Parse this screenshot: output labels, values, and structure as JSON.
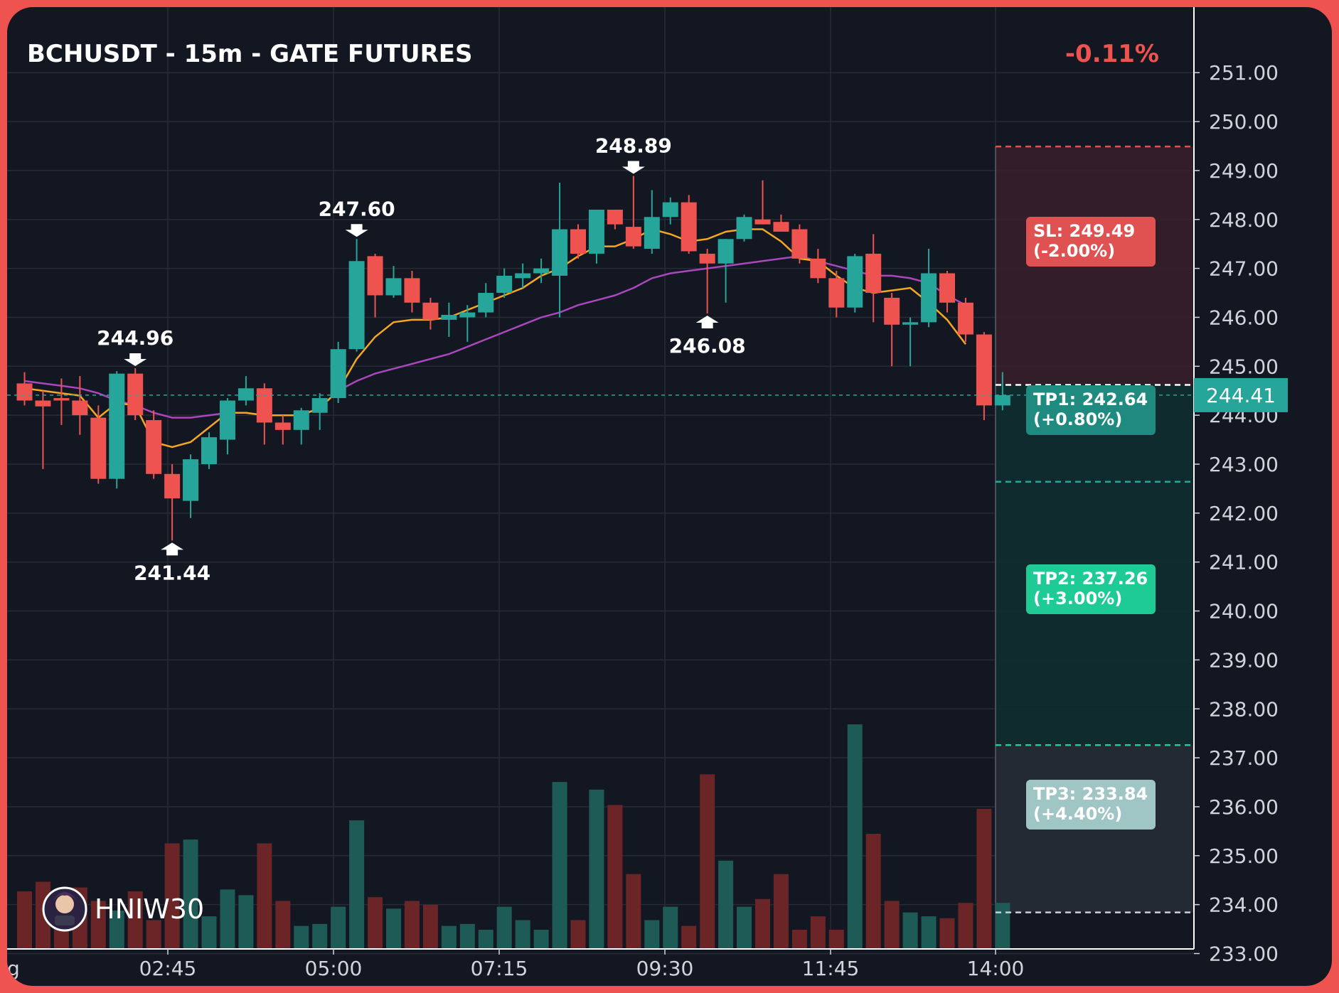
{
  "header": {
    "title": "BCHUSDT - 15m - GATE FUTURES",
    "change": "-0.11%"
  },
  "colors": {
    "up": "#26a69a",
    "down": "#ef5350",
    "ma_fast": "#f5a623",
    "ma_slow": "#ab47bc",
    "sl": "#e05252",
    "tp1": "#1f8a80",
    "tp2": "#1ecb95",
    "tp3": "#9fc6c4"
  },
  "brand": {
    "name": "HNIW30",
    "icon": "avatar-icon"
  },
  "chart_data": {
    "type": "candlestick",
    "ylim": [
      232.6,
      251.6
    ],
    "yticks": [
      "233.00",
      "234.00",
      "235.00",
      "236.00",
      "237.00",
      "238.00",
      "239.00",
      "240.00",
      "241.00",
      "242.00",
      "243.00",
      "244.00",
      "245.00",
      "246.00",
      "247.00",
      "248.00",
      "249.00",
      "250.00",
      "251.00"
    ],
    "xticks": [
      "g",
      "02:45",
      "05:00",
      "07:15",
      "09:30",
      "11:45",
      "14:00"
    ],
    "last_price": "244.41",
    "candles": [
      {
        "o": 244.65,
        "h": 244.88,
        "l": 244.2,
        "c": 244.3,
        "v": 0.3
      },
      {
        "o": 244.3,
        "h": 244.5,
        "l": 242.9,
        "c": 244.18,
        "v": 0.35
      },
      {
        "o": 244.35,
        "h": 244.75,
        "l": 243.8,
        "c": 244.3,
        "v": 0.3
      },
      {
        "o": 244.3,
        "h": 244.8,
        "l": 243.6,
        "c": 244.0,
        "v": 0.32
      },
      {
        "o": 243.95,
        "h": 244.2,
        "l": 242.6,
        "c": 242.7,
        "v": 0.25
      },
      {
        "o": 242.7,
        "h": 244.9,
        "l": 242.5,
        "c": 244.85,
        "v": 0.2
      },
      {
        "o": 244.85,
        "h": 244.96,
        "l": 243.9,
        "c": 244.0,
        "v": 0.3
      },
      {
        "o": 243.9,
        "h": 244.1,
        "l": 242.7,
        "c": 242.8,
        "v": 0.15
      },
      {
        "o": 242.8,
        "h": 243.0,
        "l": 241.44,
        "c": 242.3,
        "v": 0.55
      },
      {
        "o": 242.25,
        "h": 243.2,
        "l": 241.9,
        "c": 243.1,
        "v": 0.57
      },
      {
        "o": 243.0,
        "h": 243.65,
        "l": 242.9,
        "c": 243.55,
        "v": 0.17
      },
      {
        "o": 243.5,
        "h": 244.35,
        "l": 243.2,
        "c": 244.3,
        "v": 0.31
      },
      {
        "o": 244.3,
        "h": 244.8,
        "l": 244.2,
        "c": 244.55,
        "v": 0.28
      },
      {
        "o": 244.55,
        "h": 244.65,
        "l": 243.4,
        "c": 243.85,
        "v": 0.55
      },
      {
        "o": 243.85,
        "h": 244.0,
        "l": 243.4,
        "c": 243.7,
        "v": 0.25
      },
      {
        "o": 243.7,
        "h": 244.15,
        "l": 243.4,
        "c": 244.1,
        "v": 0.12
      },
      {
        "o": 244.05,
        "h": 244.45,
        "l": 243.7,
        "c": 244.35,
        "v": 0.13
      },
      {
        "o": 244.35,
        "h": 245.5,
        "l": 244.25,
        "c": 245.35,
        "v": 0.22
      },
      {
        "o": 245.35,
        "h": 247.6,
        "l": 245.3,
        "c": 247.15,
        "v": 0.67
      },
      {
        "o": 247.25,
        "h": 247.3,
        "l": 246.0,
        "c": 246.45,
        "v": 0.27
      },
      {
        "o": 246.45,
        "h": 247.05,
        "l": 246.4,
        "c": 246.8,
        "v": 0.21
      },
      {
        "o": 246.8,
        "h": 246.95,
        "l": 246.1,
        "c": 246.3,
        "v": 0.25
      },
      {
        "o": 246.3,
        "h": 246.4,
        "l": 245.75,
        "c": 245.95,
        "v": 0.23
      },
      {
        "o": 245.95,
        "h": 246.3,
        "l": 245.6,
        "c": 246.05,
        "v": 0.12
      },
      {
        "o": 246.0,
        "h": 246.25,
        "l": 245.5,
        "c": 246.1,
        "v": 0.13
      },
      {
        "o": 246.1,
        "h": 246.7,
        "l": 246.0,
        "c": 246.5,
        "v": 0.1
      },
      {
        "o": 246.5,
        "h": 247.0,
        "l": 246.4,
        "c": 246.85,
        "v": 0.22
      },
      {
        "o": 246.8,
        "h": 247.1,
        "l": 246.6,
        "c": 246.9,
        "v": 0.15
      },
      {
        "o": 246.9,
        "h": 247.2,
        "l": 246.7,
        "c": 247.0,
        "v": 0.1
      },
      {
        "o": 246.85,
        "h": 248.75,
        "l": 246.0,
        "c": 247.8,
        "v": 0.87
      },
      {
        "o": 247.8,
        "h": 247.9,
        "l": 247.2,
        "c": 247.3,
        "v": 0.15
      },
      {
        "o": 247.3,
        "h": 248.2,
        "l": 247.1,
        "c": 248.2,
        "v": 0.83
      },
      {
        "o": 248.2,
        "h": 248.2,
        "l": 247.8,
        "c": 247.9,
        "v": 0.75
      },
      {
        "o": 247.85,
        "h": 248.89,
        "l": 247.4,
        "c": 247.45,
        "v": 0.39
      },
      {
        "o": 247.4,
        "h": 248.6,
        "l": 247.3,
        "c": 248.05,
        "v": 0.15
      },
      {
        "o": 248.05,
        "h": 248.45,
        "l": 247.9,
        "c": 248.35,
        "v": 0.22
      },
      {
        "o": 248.35,
        "h": 248.5,
        "l": 247.3,
        "c": 247.35,
        "v": 0.12
      },
      {
        "o": 247.3,
        "h": 247.4,
        "l": 246.08,
        "c": 247.1,
        "v": 0.91
      },
      {
        "o": 247.1,
        "h": 247.6,
        "l": 246.3,
        "c": 247.6,
        "v": 0.46
      },
      {
        "o": 247.6,
        "h": 248.1,
        "l": 247.55,
        "c": 248.05,
        "v": 0.22
      },
      {
        "o": 248.0,
        "h": 248.8,
        "l": 247.9,
        "c": 247.9,
        "v": 0.26
      },
      {
        "o": 247.95,
        "h": 248.1,
        "l": 247.8,
        "c": 247.75,
        "v": 0.39
      },
      {
        "o": 247.8,
        "h": 247.9,
        "l": 247.1,
        "c": 247.2,
        "v": 0.1
      },
      {
        "o": 247.2,
        "h": 247.4,
        "l": 246.7,
        "c": 246.8,
        "v": 0.17
      },
      {
        "o": 246.8,
        "h": 246.95,
        "l": 246.0,
        "c": 246.2,
        "v": 0.1
      },
      {
        "o": 246.2,
        "h": 247.3,
        "l": 246.1,
        "c": 247.25,
        "v": 1.17
      },
      {
        "o": 247.3,
        "h": 247.7,
        "l": 245.9,
        "c": 246.5,
        "v": 0.6
      },
      {
        "o": 246.4,
        "h": 246.5,
        "l": 245.0,
        "c": 245.85,
        "v": 0.25
      },
      {
        "o": 245.85,
        "h": 246.0,
        "l": 245.0,
        "c": 245.9,
        "v": 0.19
      },
      {
        "o": 245.9,
        "h": 247.4,
        "l": 245.8,
        "c": 246.9,
        "v": 0.17
      },
      {
        "o": 246.9,
        "h": 246.95,
        "l": 246.1,
        "c": 246.3,
        "v": 0.16
      },
      {
        "o": 246.3,
        "h": 246.4,
        "l": 245.5,
        "c": 245.65,
        "v": 0.24
      },
      {
        "o": 245.65,
        "h": 245.7,
        "l": 243.9,
        "c": 244.2,
        "v": 0.73
      },
      {
        "o": 244.2,
        "h": 244.88,
        "l": 244.1,
        "c": 244.41,
        "v": 0.24
      }
    ],
    "ma_fast": [
      244.55,
      244.5,
      244.45,
      244.4,
      243.95,
      244.25,
      244.2,
      243.45,
      243.35,
      243.45,
      243.75,
      244.05,
      244.05,
      244.0,
      244.0,
      244.0,
      244.15,
      244.5,
      245.15,
      245.6,
      245.9,
      245.95,
      245.95,
      246.0,
      246.15,
      246.3,
      246.45,
      246.6,
      246.85,
      247.0,
      247.25,
      247.45,
      247.45,
      247.6,
      247.8,
      247.7,
      247.55,
      247.6,
      247.75,
      247.8,
      247.8,
      247.55,
      247.2,
      247.15,
      246.85,
      246.6,
      246.5,
      246.55,
      246.6,
      246.3,
      245.95,
      245.45
    ],
    "ma_slow": [
      244.7,
      244.65,
      244.6,
      244.55,
      244.45,
      244.3,
      244.2,
      244.05,
      243.95,
      243.95,
      244.0,
      244.05,
      244.05,
      244.0,
      244.0,
      244.0,
      244.15,
      244.5,
      244.7,
      244.85,
      244.95,
      245.05,
      245.15,
      245.25,
      245.4,
      245.55,
      245.7,
      245.85,
      246.0,
      246.1,
      246.25,
      246.35,
      246.45,
      246.6,
      246.8,
      246.9,
      246.95,
      247.0,
      247.05,
      247.1,
      247.15,
      247.2,
      247.25,
      247.15,
      247.05,
      246.95,
      246.85,
      246.85,
      246.8,
      246.7,
      246.45,
      246.25
    ],
    "annotations": [
      {
        "label": "244.96",
        "dir": "down",
        "candle": 6,
        "price": 244.96
      },
      {
        "label": "241.44",
        "dir": "up",
        "candle": 8,
        "price": 241.44
      },
      {
        "label": "247.60",
        "dir": "down",
        "candle": 18,
        "price": 247.6
      },
      {
        "label": "248.89",
        "dir": "down",
        "candle": 33,
        "price": 248.89
      },
      {
        "label": "246.08",
        "dir": "up",
        "candle": 37,
        "price": 246.08
      }
    ],
    "levels": [
      {
        "id": "sl",
        "price": 249.49,
        "line1": "SL: 249.49",
        "line2": "(-2.00%)"
      },
      {
        "id": "tp1",
        "price": 242.64,
        "line1": "TP1: 242.64",
        "line2": "(+0.80%)"
      },
      {
        "id": "tp2",
        "price": 237.26,
        "line1": "TP2: 237.26",
        "line2": "(+3.00%)"
      },
      {
        "id": "tp3",
        "price": 233.84,
        "line1": "TP3: 233.84",
        "line2": "(+4.40%)"
      }
    ],
    "entry": 244.62
  }
}
